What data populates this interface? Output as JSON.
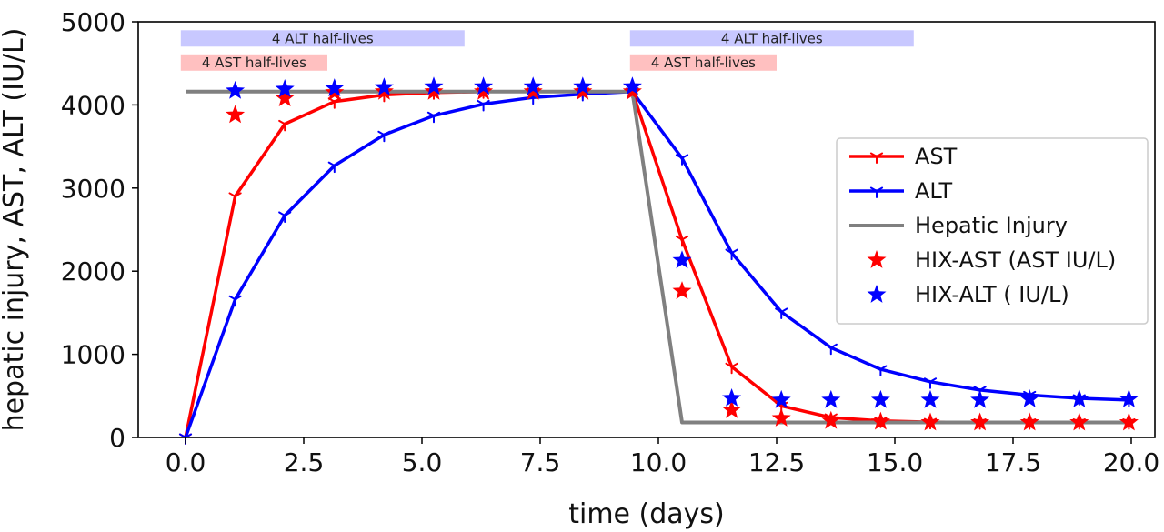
{
  "chart_data": {
    "type": "line",
    "xlabel": "time (days)",
    "ylabel": "hepatic injury, AST, ALT (IU/L)",
    "xlim": [
      -1,
      20.5
    ],
    "ylim": [
      0,
      5000
    ],
    "xticks": [
      0.0,
      2.5,
      5.0,
      7.5,
      10.0,
      12.5,
      15.0,
      17.5,
      20.0
    ],
    "xtick_labels": [
      "0.0",
      "2.5",
      "5.0",
      "7.5",
      "10.0",
      "12.5",
      "15.0",
      "17.5",
      "20.0"
    ],
    "yticks": [
      0,
      1000,
      2000,
      3000,
      4000,
      5000
    ],
    "ytick_labels": [
      "0",
      "1000",
      "2000",
      "3000",
      "4000",
      "5000"
    ],
    "grid": false,
    "legend_position": "right",
    "series": [
      {
        "name": "AST",
        "kind": "line",
        "color": "#ff0000",
        "marker": "tri-down",
        "points": [
          [
            0,
            0
          ],
          [
            1.05,
            2900
          ],
          [
            2.1,
            3770
          ],
          [
            3.15,
            4040
          ],
          [
            4.2,
            4120
          ],
          [
            5.25,
            4150
          ],
          [
            6.3,
            4160
          ],
          [
            7.35,
            4160
          ],
          [
            8.4,
            4160
          ],
          [
            9.45,
            4160
          ],
          [
            10.5,
            2380
          ],
          [
            11.55,
            850
          ],
          [
            12.6,
            380
          ],
          [
            13.65,
            240
          ],
          [
            14.7,
            200
          ],
          [
            15.75,
            185
          ],
          [
            16.8,
            180
          ],
          [
            17.85,
            180
          ],
          [
            18.9,
            180
          ],
          [
            19.95,
            180
          ]
        ]
      },
      {
        "name": "ALT",
        "kind": "line",
        "color": "#0000ff",
        "marker": "tri-down",
        "points": [
          [
            0,
            0
          ],
          [
            1.05,
            1660
          ],
          [
            2.1,
            2670
          ],
          [
            3.15,
            3270
          ],
          [
            4.2,
            3640
          ],
          [
            5.25,
            3870
          ],
          [
            6.3,
            4010
          ],
          [
            7.35,
            4090
          ],
          [
            8.4,
            4130
          ],
          [
            9.45,
            4160
          ],
          [
            10.5,
            3360
          ],
          [
            11.55,
            2220
          ],
          [
            12.6,
            1510
          ],
          [
            13.65,
            1080
          ],
          [
            14.7,
            820
          ],
          [
            15.75,
            670
          ],
          [
            16.8,
            570
          ],
          [
            17.85,
            510
          ],
          [
            18.9,
            470
          ],
          [
            19.95,
            450
          ]
        ]
      },
      {
        "name": "Hepatic Injury",
        "kind": "line",
        "color": "#808080",
        "marker": "none",
        "points": [
          [
            0,
            4160
          ],
          [
            9.45,
            4160
          ],
          [
            10.5,
            180
          ],
          [
            19.95,
            180
          ]
        ]
      },
      {
        "name": "HIX-AST (AST IU/L)",
        "kind": "scatter",
        "color": "#ff0000",
        "marker": "star",
        "points": [
          [
            1.05,
            3880
          ],
          [
            2.1,
            4080
          ],
          [
            3.15,
            4150
          ],
          [
            4.2,
            4160
          ],
          [
            5.25,
            4160
          ],
          [
            6.3,
            4160
          ],
          [
            7.35,
            4160
          ],
          [
            8.4,
            4160
          ],
          [
            9.45,
            4160
          ],
          [
            10.5,
            1760
          ],
          [
            11.55,
            330
          ],
          [
            12.6,
            230
          ],
          [
            13.65,
            200
          ],
          [
            14.7,
            190
          ],
          [
            15.75,
            180
          ],
          [
            16.8,
            180
          ],
          [
            17.85,
            180
          ],
          [
            18.9,
            180
          ],
          [
            19.95,
            180
          ]
        ]
      },
      {
        "name": "HIX-ALT ( IU/L)",
        "kind": "scatter",
        "color": "#0000ff",
        "marker": "star",
        "points": [
          [
            1.05,
            4170
          ],
          [
            2.1,
            4190
          ],
          [
            3.15,
            4200
          ],
          [
            4.2,
            4210
          ],
          [
            5.25,
            4220
          ],
          [
            6.3,
            4220
          ],
          [
            7.35,
            4220
          ],
          [
            8.4,
            4220
          ],
          [
            9.45,
            4220
          ],
          [
            10.5,
            2130
          ],
          [
            11.55,
            470
          ],
          [
            12.6,
            450
          ],
          [
            13.65,
            450
          ],
          [
            14.7,
            450
          ],
          [
            15.75,
            450
          ],
          [
            16.8,
            450
          ],
          [
            17.85,
            460
          ],
          [
            18.9,
            460
          ],
          [
            19.95,
            460
          ]
        ]
      }
    ],
    "annotations": [
      {
        "label": "4 ALT half-lives",
        "x_start": -0.1,
        "x_end": 5.9,
        "y": 4800,
        "color": "#c8c8ff"
      },
      {
        "label": "4 AST half-lives",
        "x_start": -0.1,
        "x_end": 3.0,
        "y": 4510,
        "color": "#ffc0c0"
      },
      {
        "label": "4 ALT half-lives",
        "x_start": 9.4,
        "x_end": 15.4,
        "y": 4800,
        "color": "#c8c8ff"
      },
      {
        "label": "4 AST half-lives",
        "x_start": 9.4,
        "x_end": 12.5,
        "y": 4510,
        "color": "#ffc0c0"
      }
    ]
  }
}
